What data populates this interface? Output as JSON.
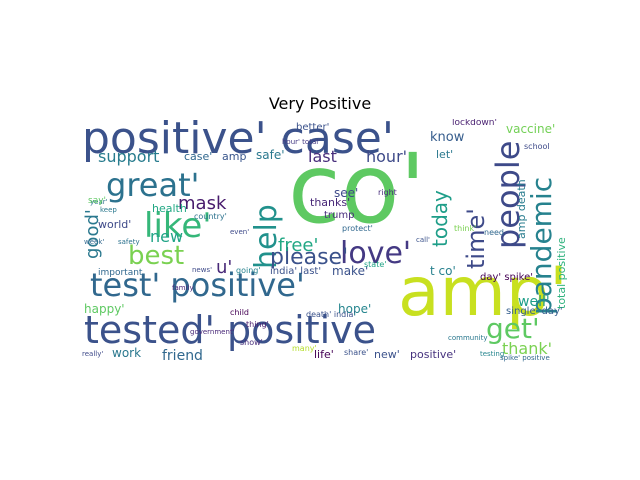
{
  "title": "Very Positive",
  "words": [
    {
      "text": "positive' case'",
      "color": "#3b528b"
    },
    {
      "text": "co'",
      "color": "#5ec962"
    },
    {
      "text": "amp'",
      "color": "#c8e020"
    },
    {
      "text": "tested' positive",
      "color": "#3b528b"
    },
    {
      "text": "test' positive'",
      "color": "#31688e"
    },
    {
      "text": "great'",
      "color": "#2c728e"
    },
    {
      "text": "like'",
      "color": "#35b779"
    },
    {
      "text": "help",
      "color": "#21918c"
    },
    {
      "text": "people",
      "color": "#3e4a89"
    },
    {
      "text": "love'",
      "color": "#443983"
    },
    {
      "text": "best",
      "color": "#7ad151"
    },
    {
      "text": "get'",
      "color": "#5ec962"
    },
    {
      "text": "pandemic",
      "color": "#26828e"
    },
    {
      "text": "time'",
      "color": "#3e4a89"
    },
    {
      "text": "today",
      "color": "#1f9e89"
    },
    {
      "text": "good'",
      "color": "#2a788e"
    },
    {
      "text": "mask",
      "color": "#481b6d"
    },
    {
      "text": "support",
      "color": "#287c8e"
    },
    {
      "text": "please'",
      "color": "#3b528b"
    },
    {
      "text": "hour'",
      "color": "#3e4a89"
    },
    {
      "text": "free'",
      "color": "#22a884"
    },
    {
      "text": "last",
      "color": "#472d7b"
    },
    {
      "text": "know",
      "color": "#365d8d"
    },
    {
      "text": "u'",
      "color": "#482878"
    },
    {
      "text": "new",
      "color": "#20a486"
    },
    {
      "text": "thank'",
      "color": "#7ad151"
    },
    {
      "text": "well'",
      "color": "#1f9e89"
    },
    {
      "text": "friend",
      "color": "#31688e"
    },
    {
      "text": "work",
      "color": "#2a788e"
    },
    {
      "text": "hope'",
      "color": "#25858e"
    },
    {
      "text": "happy'",
      "color": "#5ec962"
    },
    {
      "text": "life'",
      "color": "#440154"
    },
    {
      "text": "new'",
      "color": "#3b528b"
    },
    {
      "text": "positive'",
      "color": "#46327e"
    },
    {
      "text": "vaccine'",
      "color": "#73d056"
    },
    {
      "text": "safe'",
      "color": "#2a788e"
    },
    {
      "text": "see'",
      "color": "#3e4a89"
    },
    {
      "text": "thanks'",
      "color": "#482878"
    },
    {
      "text": "make'",
      "color": "#3b528b"
    },
    {
      "text": "t co'",
      "color": "#27808e"
    },
    {
      "text": "health",
      "color": "#22a884"
    },
    {
      "text": "world'",
      "color": "#3e4a89"
    },
    {
      "text": "let'",
      "color": "#2a788e"
    },
    {
      "text": "trump",
      "color": "#472d7b"
    },
    {
      "text": "case'",
      "color": "#31688e"
    },
    {
      "text": "amp",
      "color": "#39568c"
    },
    {
      "text": "better'",
      "color": "#3b528b"
    },
    {
      "text": "amp death",
      "color": "#287c8e"
    },
    {
      "text": "total positive",
      "color": "#2db27d"
    },
    {
      "text": "single' day'",
      "color": "#355f8d"
    },
    {
      "text": "day' spike'",
      "color": "#440154"
    },
    {
      "text": "india' last'",
      "color": "#3b528b"
    },
    {
      "text": "lockdown'",
      "color": "#481f70"
    },
    {
      "text": "school",
      "color": "#3e4a89"
    },
    {
      "text": "important",
      "color": "#31688e"
    },
    {
      "text": "family",
      "color": "#482878"
    },
    {
      "text": "country'",
      "color": "#2c728e"
    },
    {
      "text": "hour' total'",
      "color": "#443983"
    },
    {
      "text": "need",
      "color": "#31688e"
    },
    {
      "text": "think'",
      "color": "#7ad151"
    },
    {
      "text": "show'",
      "color": "#472d7b"
    },
    {
      "text": "really'",
      "color": "#3e4a89"
    },
    {
      "text": "share'",
      "color": "#3b528b"
    },
    {
      "text": "many'",
      "color": "#b5de2b"
    },
    {
      "text": "spike' positive",
      "color": "#31688e"
    },
    {
      "text": "community",
      "color": "#2a788e"
    },
    {
      "text": "right",
      "color": "#472d7b"
    },
    {
      "text": "thing'",
      "color": "#481b6d"
    },
    {
      "text": "year'",
      "color": "#2c728e"
    },
    {
      "text": "say'",
      "color": "#5ec962"
    },
    {
      "text": "even'",
      "color": "#3e4a89"
    },
    {
      "text": "protect'",
      "color": "#31688e"
    },
    {
      "text": "keep",
      "color": "#2a788e"
    },
    {
      "text": "government'",
      "color": "#482878"
    },
    {
      "text": "death' india'",
      "color": "#3b528b"
    },
    {
      "text": "going'",
      "color": "#26828e"
    },
    {
      "text": "news'",
      "color": "#3e4a89"
    },
    {
      "text": "state'",
      "color": "#20a486"
    },
    {
      "text": "safety",
      "color": "#2c728e"
    },
    {
      "text": "week'",
      "color": "#31688e"
    },
    {
      "text": "child",
      "color": "#440154"
    },
    {
      "text": "call'",
      "color": "#3b528b"
    },
    {
      "text": "testing",
      "color": "#25858e"
    }
  ]
}
